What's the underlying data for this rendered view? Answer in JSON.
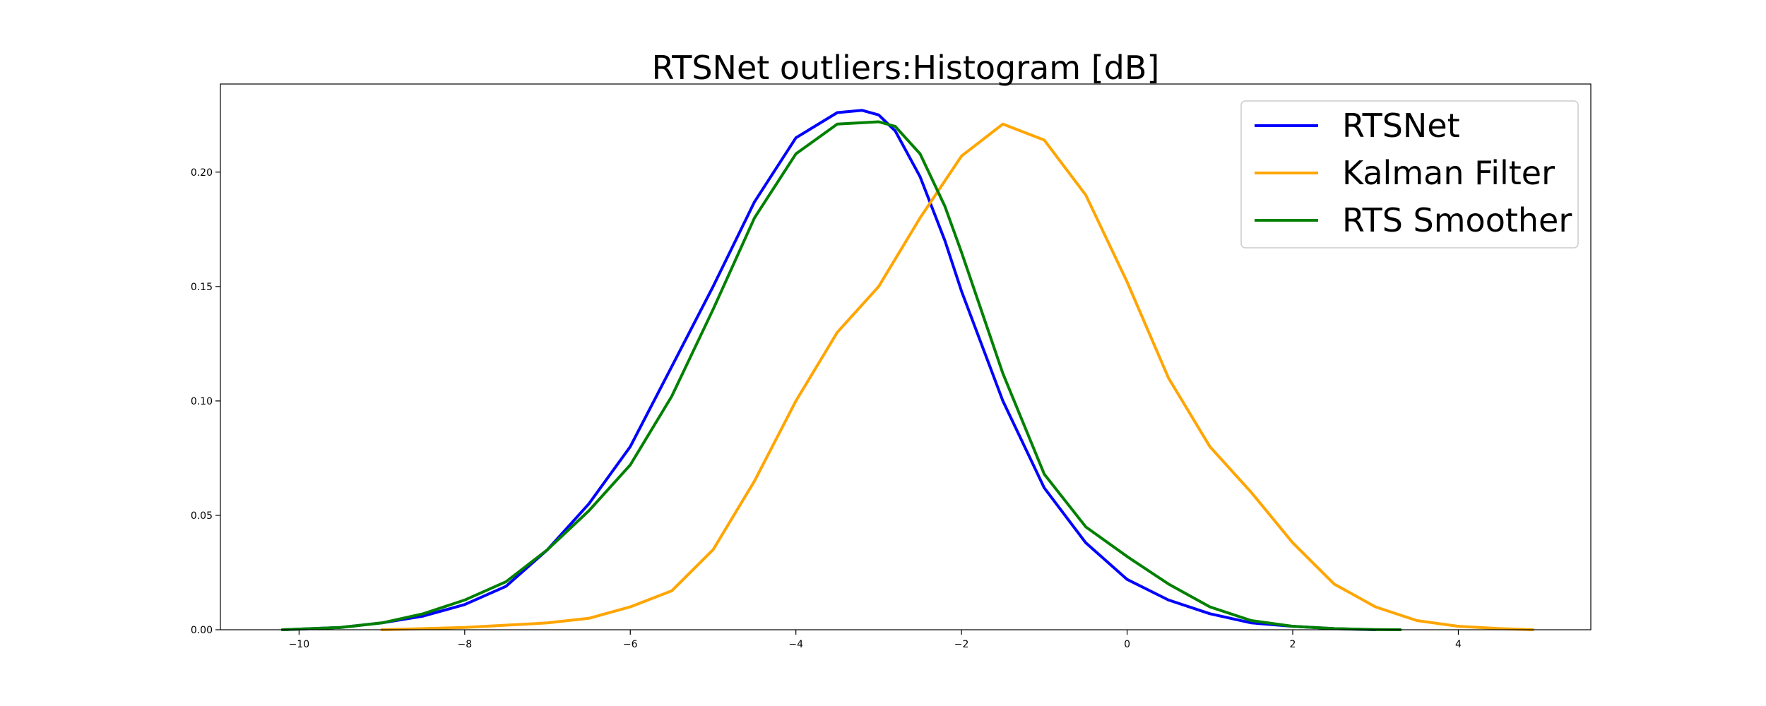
{
  "chart_data": {
    "type": "line",
    "title": "RTSNet outliers:Histogram [dB]",
    "xlabel": "",
    "ylabel": "",
    "xlim": [
      -10.95,
      5.6
    ],
    "ylim": [
      0,
      0.2385
    ],
    "xticks": [
      -10,
      -8,
      -6,
      -4,
      -2,
      0,
      2,
      4
    ],
    "xtick_labels": [
      "−10",
      "−8",
      "−6",
      "−4",
      "−2",
      "0",
      "2",
      "4"
    ],
    "yticks": [
      0.0,
      0.05,
      0.1,
      0.15,
      0.2
    ],
    "ytick_labels": [
      "0.00",
      "0.05",
      "0.10",
      "0.15",
      "0.20"
    ],
    "grid": false,
    "legend_position": "top-right",
    "series": [
      {
        "name": "RTSNet",
        "color": "#0000ff",
        "x": [
          -10.2,
          -9.5,
          -9.0,
          -8.5,
          -8.0,
          -7.5,
          -7.0,
          -6.5,
          -6.0,
          -5.5,
          -5.0,
          -4.5,
          -4.0,
          -3.5,
          -3.2,
          -3.0,
          -2.8,
          -2.5,
          -2.2,
          -2.0,
          -1.5,
          -1.0,
          -0.5,
          0.0,
          0.5,
          1.0,
          1.5,
          2.0,
          2.5,
          3.0
        ],
        "y": [
          0.0,
          0.001,
          0.003,
          0.006,
          0.011,
          0.019,
          0.035,
          0.055,
          0.08,
          0.115,
          0.15,
          0.187,
          0.215,
          0.226,
          0.227,
          0.225,
          0.218,
          0.198,
          0.17,
          0.148,
          0.1,
          0.062,
          0.038,
          0.022,
          0.013,
          0.007,
          0.003,
          0.0015,
          0.0005,
          0.0
        ]
      },
      {
        "name": "Kalman Filter",
        "color": "#ffa500",
        "x": [
          -9.0,
          -8.5,
          -8.0,
          -7.5,
          -7.0,
          -6.5,
          -6.0,
          -5.5,
          -5.0,
          -4.5,
          -4.0,
          -3.5,
          -3.0,
          -2.5,
          -2.0,
          -1.5,
          -1.0,
          -0.5,
          0.0,
          0.5,
          1.0,
          1.5,
          2.0,
          2.5,
          3.0,
          3.5,
          4.0,
          4.5,
          4.9
        ],
        "y": [
          0.0,
          0.0005,
          0.001,
          0.002,
          0.003,
          0.005,
          0.01,
          0.017,
          0.035,
          0.065,
          0.1,
          0.13,
          0.15,
          0.18,
          0.207,
          0.221,
          0.214,
          0.19,
          0.152,
          0.11,
          0.08,
          0.06,
          0.038,
          0.02,
          0.01,
          0.004,
          0.0015,
          0.0005,
          0.0
        ]
      },
      {
        "name": "RTS Smoother",
        "color": "#008000",
        "x": [
          -10.2,
          -9.5,
          -9.0,
          -8.5,
          -8.0,
          -7.5,
          -7.0,
          -6.5,
          -6.0,
          -5.5,
          -5.0,
          -4.5,
          -4.0,
          -3.5,
          -3.0,
          -2.8,
          -2.5,
          -2.2,
          -2.0,
          -1.5,
          -1.0,
          -0.5,
          0.0,
          0.5,
          1.0,
          1.5,
          2.0,
          2.5,
          3.0,
          3.3
        ],
        "y": [
          0.0,
          0.001,
          0.003,
          0.007,
          0.013,
          0.021,
          0.035,
          0.052,
          0.072,
          0.102,
          0.14,
          0.18,
          0.208,
          0.221,
          0.222,
          0.22,
          0.208,
          0.185,
          0.165,
          0.112,
          0.068,
          0.045,
          0.032,
          0.02,
          0.01,
          0.004,
          0.0015,
          0.0005,
          0.0001,
          0.0
        ]
      }
    ]
  }
}
